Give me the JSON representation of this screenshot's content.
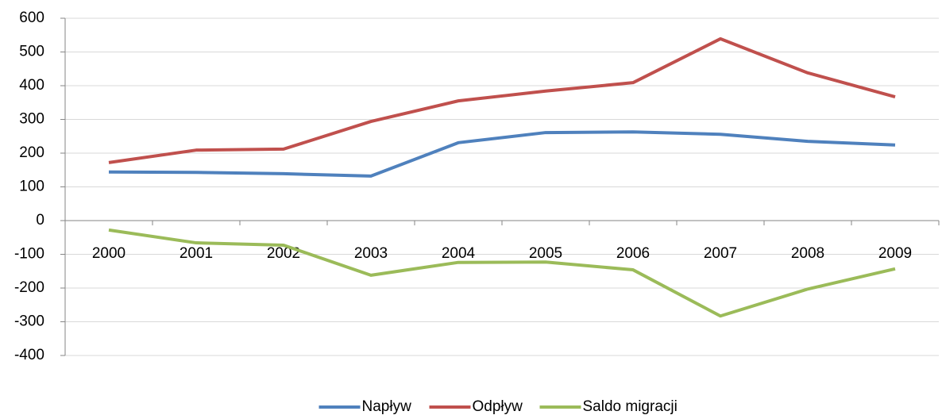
{
  "chart_data": {
    "type": "line",
    "categories": [
      "2000",
      "2001",
      "2002",
      "2003",
      "2004",
      "2005",
      "2006",
      "2007",
      "2008",
      "2009"
    ],
    "series": [
      {
        "name": "Napływ",
        "color": "#4f81bd",
        "values": [
          144,
          143,
          139,
          132,
          231,
          261,
          263,
          256,
          235,
          224
        ]
      },
      {
        "name": "Odpływ",
        "color": "#c0504d",
        "values": [
          172,
          209,
          212,
          294,
          355,
          384,
          409,
          539,
          438,
          367
        ]
      },
      {
        "name": "Saldo migracji",
        "color": "#9bbb59",
        "values": [
          -28,
          -66,
          -73,
          -162,
          -124,
          -123,
          -146,
          -283,
          -203,
          -143
        ]
      }
    ],
    "ylim": [
      -400,
      600
    ],
    "yticks": [
      -400,
      -300,
      -200,
      -100,
      0,
      100,
      200,
      300,
      400,
      500,
      600
    ],
    "grid": true,
    "legend": "bottom"
  }
}
